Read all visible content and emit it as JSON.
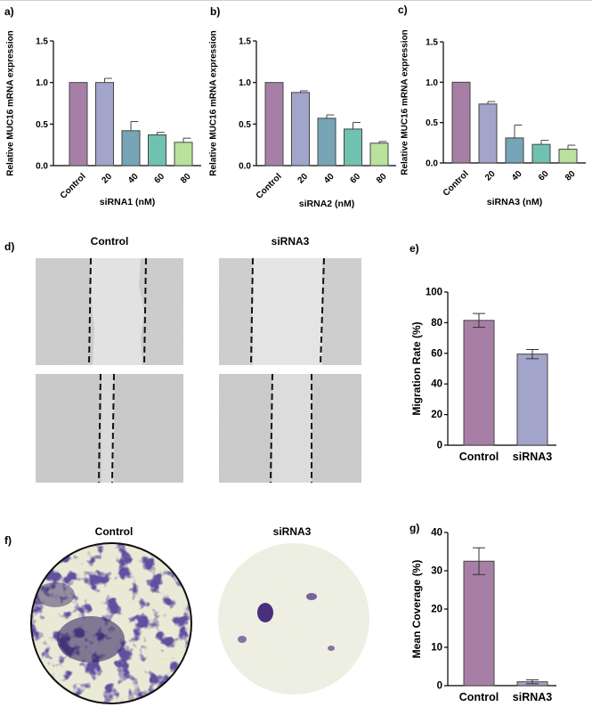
{
  "panel_labels": {
    "a": "a)",
    "b": "b)",
    "c": "c)",
    "d": "d)",
    "e": "e)",
    "f": "f)",
    "g": "g)"
  },
  "chart_data": [
    {
      "id": "a",
      "type": "bar",
      "categories": [
        "Control",
        "20",
        "40",
        "60",
        "80"
      ],
      "values": [
        1.0,
        1.0,
        0.42,
        0.37,
        0.28
      ],
      "errors": [
        0.0,
        0.05,
        0.11,
        0.03,
        0.05
      ],
      "colors": [
        "#a77fa6",
        "#a2a4c9",
        "#77a4b6",
        "#70c2b0",
        "#b9e29c"
      ],
      "xlabel": "siRNA1 (nM)",
      "ylabel": "Relative MUC16 mRNA expression",
      "ylim": [
        0,
        1.5
      ],
      "yticks": [
        0,
        0.5,
        1.0,
        1.5
      ],
      "ytick_labels": [
        "0.0",
        "0.5",
        "1.0",
        "1.5"
      ]
    },
    {
      "id": "b",
      "type": "bar",
      "categories": [
        "Control",
        "20",
        "40",
        "60",
        "80"
      ],
      "values": [
        1.0,
        0.88,
        0.57,
        0.44,
        0.27
      ],
      "errors": [
        0.0,
        0.02,
        0.04,
        0.08,
        0.02
      ],
      "colors": [
        "#a77fa6",
        "#a2a4c9",
        "#77a4b6",
        "#70c2b0",
        "#b9e29c"
      ],
      "xlabel": "siRNA2 (nM)",
      "ylabel": "Relative MUC16 mRNA expression",
      "ylim": [
        0,
        1.5
      ],
      "yticks": [
        0,
        0.5,
        1.0,
        1.5
      ],
      "ytick_labels": [
        "0.0",
        "0.5",
        "1.0",
        "1.5"
      ]
    },
    {
      "id": "c",
      "type": "bar",
      "categories": [
        "Control",
        "20",
        "40",
        "60",
        "80"
      ],
      "values": [
        1.0,
        0.73,
        0.31,
        0.23,
        0.17
      ],
      "errors": [
        0.0,
        0.03,
        0.16,
        0.05,
        0.05
      ],
      "colors": [
        "#a77fa6",
        "#a2a4c9",
        "#77a4b6",
        "#70c2b0",
        "#b9e29c"
      ],
      "xlabel": "siRNA3 (nM)",
      "ylabel": "Relative MUC16 mRNA expression",
      "ylim": [
        0,
        1.5
      ],
      "yticks": [
        0,
        0.5,
        1.0,
        1.5
      ],
      "ytick_labels": [
        "0.0",
        "0.5",
        "1.0",
        "1.5"
      ]
    },
    {
      "id": "e",
      "type": "bar",
      "categories": [
        "Control",
        "siRNA3"
      ],
      "values": [
        81.5,
        59.5
      ],
      "errors": [
        4.5,
        3.0
      ],
      "colors": [
        "#a77fa6",
        "#a2a4c9"
      ],
      "xlabel": "",
      "ylabel": "Migration Rate (%)",
      "ylim": [
        0,
        100
      ],
      "yticks": [
        0,
        20,
        40,
        60,
        80,
        100
      ],
      "ytick_labels": [
        "0",
        "20",
        "40",
        "60",
        "80",
        "100"
      ]
    },
    {
      "id": "g",
      "type": "bar",
      "categories": [
        "Control",
        "siRNA3"
      ],
      "values": [
        32.5,
        1.0
      ],
      "errors": [
        3.5,
        0.5
      ],
      "colors": [
        "#a77fa6",
        "#a2a4c9"
      ],
      "xlabel": "",
      "ylabel": "Mean Coverage (%)",
      "ylim": [
        0,
        40
      ],
      "yticks": [
        0,
        10,
        20,
        30,
        40
      ],
      "ytick_labels": [
        "0",
        "10",
        "20",
        "30",
        "40"
      ]
    }
  ],
  "wound": {
    "title_control": "Control",
    "title_sirna": "siRNA3"
  },
  "transwell": {
    "title_control": "Control",
    "title_sirna": "siRNA3"
  }
}
